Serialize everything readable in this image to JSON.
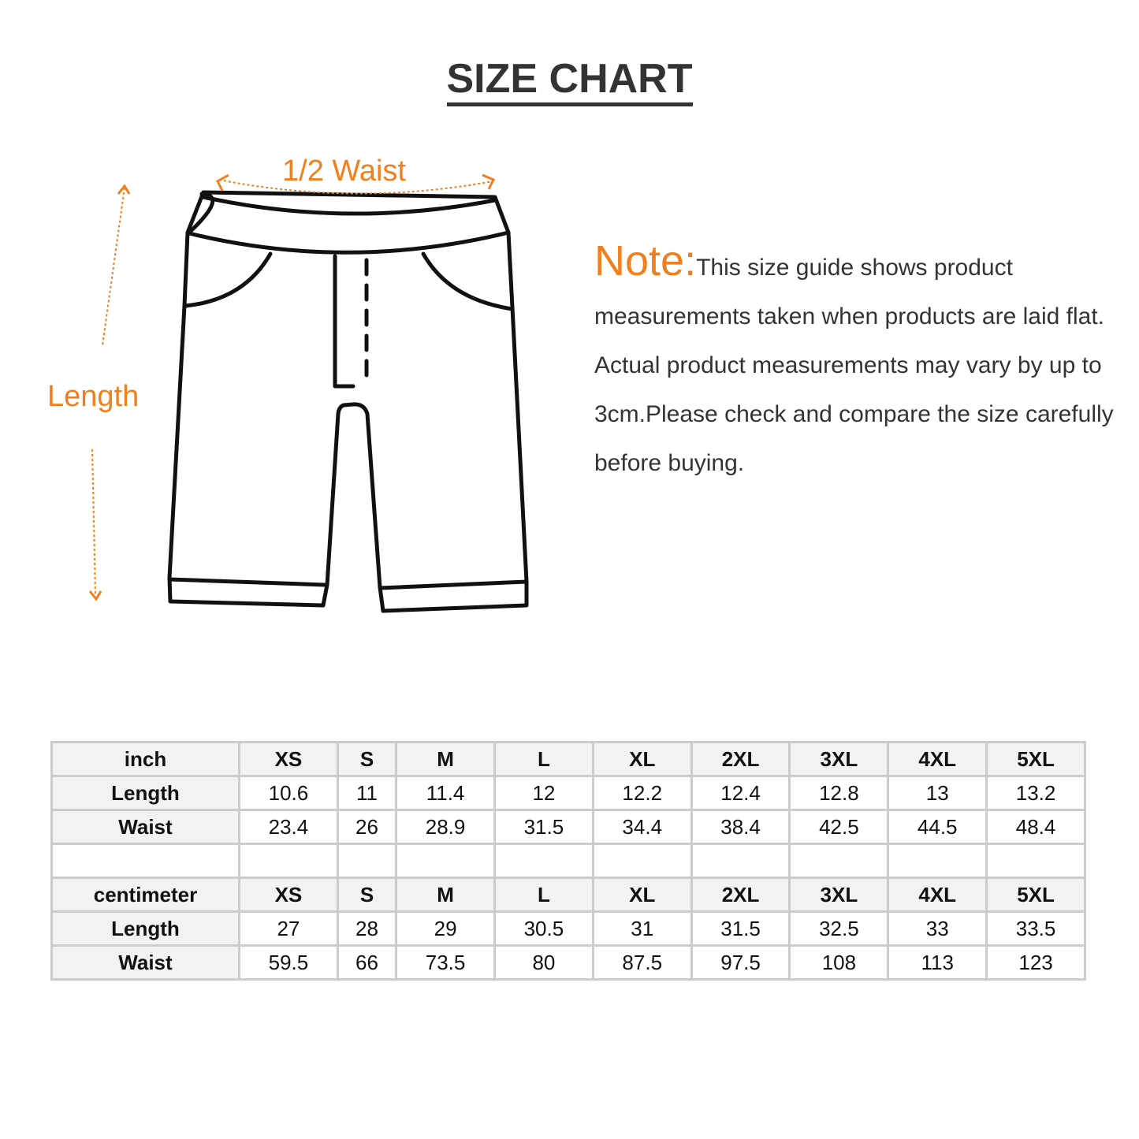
{
  "title": "SIZE CHART",
  "diagram": {
    "waist_label": "1/2 Waist",
    "length_label": "Length",
    "accent_color": "#f07f1e"
  },
  "note": {
    "heading": "Note:",
    "text": "This size guide shows product measurements taken when products are laid flat. Actual product measurements may vary by up to 3cm.Please check and compare the size carefully before buying."
  },
  "table": {
    "sizes": [
      "XS",
      "S",
      "M",
      "L",
      "XL",
      "2XL",
      "3XL",
      "4XL",
      "5XL"
    ],
    "inch": {
      "unit": "inch",
      "rows": [
        {
          "label": "Length",
          "values": [
            "10.6",
            "11",
            "11.4",
            "12",
            "12.2",
            "12.4",
            "12.8",
            "13",
            "13.2"
          ]
        },
        {
          "label": "Waist",
          "values": [
            "23.4",
            "26",
            "28.9",
            "31.5",
            "34.4",
            "38.4",
            "42.5",
            "44.5",
            "48.4"
          ]
        }
      ]
    },
    "centimeter": {
      "unit": "centimeter",
      "rows": [
        {
          "label": "Length",
          "values": [
            "27",
            "28",
            "29",
            "30.5",
            "31",
            "31.5",
            "32.5",
            "33",
            "33.5"
          ]
        },
        {
          "label": "Waist",
          "values": [
            "59.5",
            "66",
            "73.5",
            "80",
            "87.5",
            "97.5",
            "108",
            "113",
            "123"
          ]
        }
      ]
    }
  }
}
